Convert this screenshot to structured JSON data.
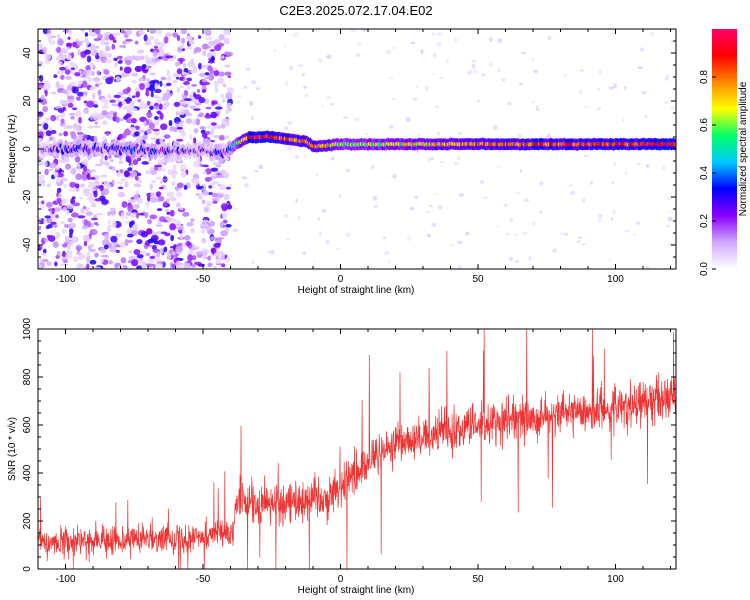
{
  "figure": {
    "title": "C2E3.2025.072.17.04.E02"
  },
  "chart_data": [
    {
      "type": "heatmap",
      "title": "C2E3.2025.072.17.04.E02",
      "xlabel": "Height of straight line (km)",
      "ylabel": "Frequency (Hz)",
      "xlim": [
        -110,
        122
      ],
      "ylim": [
        -50,
        50
      ],
      "xticks": [
        -100,
        -50,
        0,
        50,
        100
      ],
      "yticks": [
        -40,
        -20,
        0,
        20,
        40
      ],
      "colorbar": {
        "label": "Normalized spectral amplitude",
        "range": [
          0,
          1
        ],
        "ticks": [
          0.0,
          0.2,
          0.4,
          0.6,
          0.8
        ],
        "tick_labels": [
          "0.0",
          "0.2",
          "0.4",
          "0.6",
          "0.8"
        ],
        "colormap": [
          "#ffffff",
          "#d0a8ff",
          "#8800ff",
          "#0000ff",
          "#00c8ff",
          "#00ff66",
          "#ffff00",
          "#ff8800",
          "#ff0000",
          "#ff0066"
        ]
      },
      "ridge": [
        {
          "x": -110,
          "freq": 0,
          "amp": 0.25
        },
        {
          "x": -80,
          "freq": 0,
          "amp": 0.35
        },
        {
          "x": -50,
          "freq": -1,
          "amp": 0.3
        },
        {
          "x": -42,
          "freq": -2,
          "amp": 0.3
        },
        {
          "x": -38,
          "freq": 2,
          "amp": 0.5
        },
        {
          "x": -33,
          "freq": 5,
          "amp": 0.85
        },
        {
          "x": -25,
          "freq": 5,
          "amp": 0.9
        },
        {
          "x": -12,
          "freq": 3,
          "amp": 0.7
        },
        {
          "x": -10,
          "freq": 1,
          "amp": 0.8
        },
        {
          "x": 0,
          "freq": 2,
          "amp": 0.6
        },
        {
          "x": 20,
          "freq": 2,
          "amp": 0.65
        },
        {
          "x": 60,
          "freq": 2,
          "amp": 0.8
        },
        {
          "x": 122,
          "freq": 2,
          "amp": 0.9
        }
      ],
      "noise_region_x": [
        -110,
        -40
      ]
    },
    {
      "type": "line",
      "xlabel": "Height of straight line (km)",
      "ylabel": "SNR (10 * v/v)",
      "xlim": [
        -110,
        122
      ],
      "ylim": [
        0,
        1000
      ],
      "xticks": [
        -100,
        -50,
        0,
        50,
        100
      ],
      "yticks": [
        0,
        200,
        400,
        600,
        800,
        1000
      ],
      "series": [
        {
          "color": "#ee3333",
          "trend_x": [
            -110,
            -80,
            -50,
            -39,
            -38,
            -20,
            -5,
            5,
            20,
            40,
            60,
            80,
            100,
            122
          ],
          "trend_y": [
            110,
            120,
            140,
            145,
            270,
            280,
            300,
            400,
            520,
            580,
            620,
            640,
            670,
            720
          ],
          "spread": [
            -110,
            -39,
            80,
            -38,
            122,
            120
          ]
        }
      ]
    }
  ],
  "colors": {
    "line": "#ee3333",
    "background": "#ffffff",
    "axis": "#000000"
  }
}
